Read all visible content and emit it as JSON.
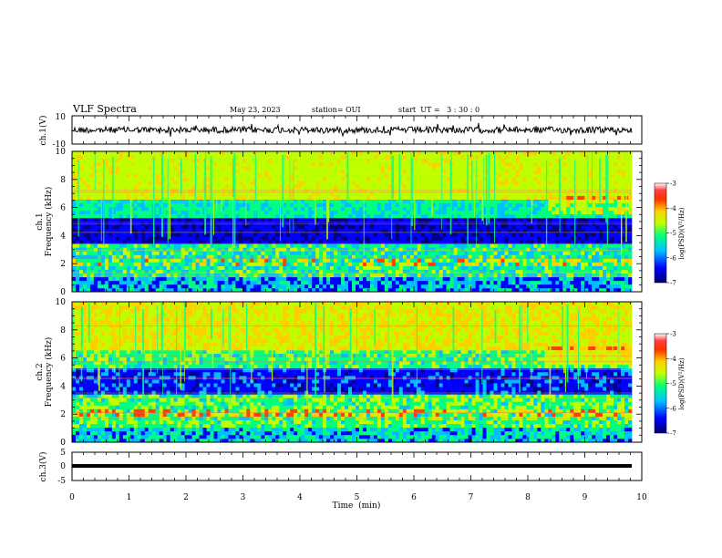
{
  "header": {
    "title": "VLF Spectra",
    "date": "May 23, 2023",
    "station": "station= OUI",
    "start_ut": "start  UT =   3 : 30 : 0"
  },
  "chart_data": [
    {
      "type": "line",
      "panel": "ch1-waveform",
      "ylabel": "ch.1(V)",
      "ylim": [
        -10,
        10
      ],
      "yticks": [
        "10",
        "-10"
      ],
      "xlim": [
        0,
        10
      ],
      "series": [
        {
          "values_description_level": 3,
          "noise_amplitude": 1.2
        }
      ],
      "color": "#000000"
    },
    {
      "type": "heatmap",
      "panel": "ch1-spectrogram",
      "ylabel_line1": "ch.1",
      "ylabel_line2": "Frequency (kHz)",
      "ylim": [
        0,
        10
      ],
      "yticks": [
        "0",
        "2",
        "4",
        "6",
        "8",
        "10"
      ],
      "xlim": [
        0,
        10
      ],
      "colorbar": {
        "label": "log(PSD)(V²/Hz)",
        "range": [
          -7,
          -3
        ],
        "ticks": [
          "-3",
          "-4",
          "-5",
          "-6",
          "-7"
        ],
        "colors": [
          "#000080",
          "#0000ff",
          "#00bfff",
          "#00ff80",
          "#c0ff00",
          "#ffd000",
          "#ff4000",
          "#ff0000",
          "#ffffff"
        ]
      }
    },
    {
      "type": "heatmap",
      "panel": "ch2-spectrogram",
      "ylabel_line1": "ch.2",
      "ylabel_line2": "Frequency (kHz)",
      "ylim": [
        0,
        10
      ],
      "yticks": [
        "0",
        "2",
        "4",
        "6",
        "8",
        "10"
      ],
      "xlim": [
        0,
        10
      ],
      "colorbar": {
        "label": "log(PSD)(V²/Hz)",
        "range": [
          -7,
          -3
        ],
        "ticks": [
          "-3",
          "-4",
          "-5",
          "-6",
          "-7"
        ],
        "colors": [
          "#000080",
          "#0000ff",
          "#00bfff",
          "#00ff80",
          "#c0ff00",
          "#ffd000",
          "#ff4000",
          "#ff0000",
          "#ffffff"
        ]
      }
    },
    {
      "type": "line",
      "panel": "ch3-waveform",
      "ylabel": "ch.3(V)",
      "ylim": [
        -5,
        5
      ],
      "yticks": [
        "5",
        "0",
        "-5"
      ],
      "xlim": [
        0,
        10
      ],
      "series": [
        {
          "constant_value": 0.2
        }
      ],
      "color": "#000000"
    }
  ],
  "xaxis": {
    "label": "Time  (min)",
    "ticks": [
      "0",
      "1",
      "2",
      "3",
      "4",
      "5",
      "6",
      "7",
      "8",
      "9",
      "10"
    ]
  }
}
